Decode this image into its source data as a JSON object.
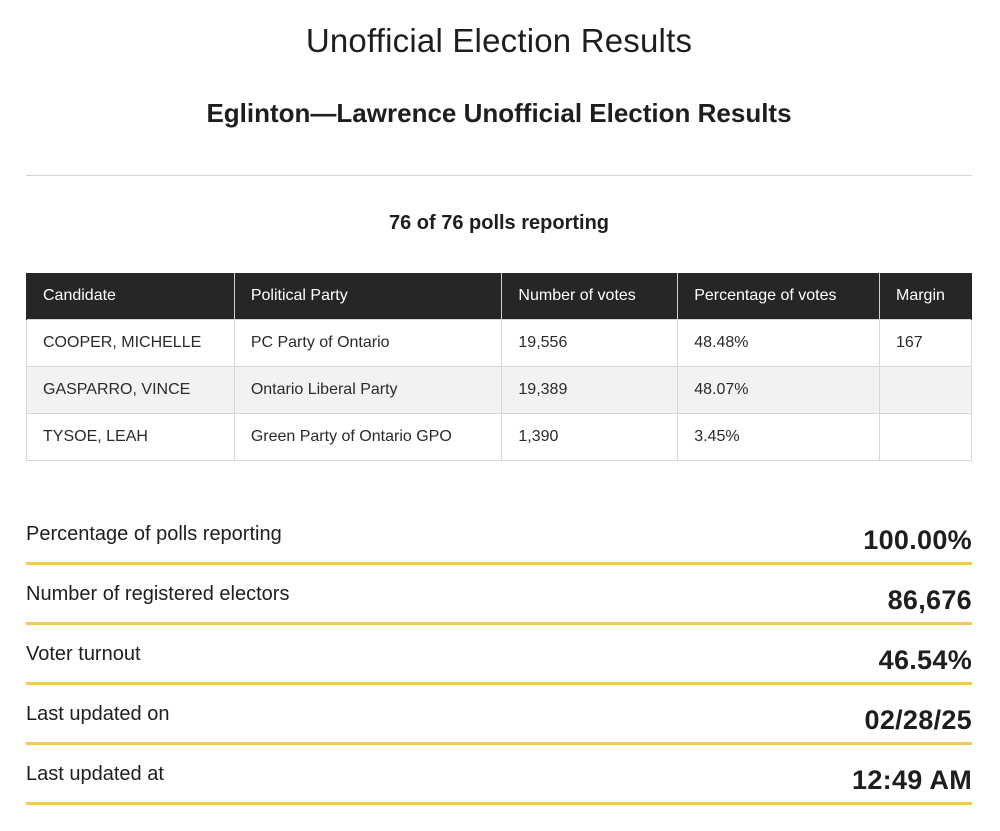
{
  "header": {
    "title": "Unofficial Election Results",
    "subtitle": "Eglinton—Lawrence Unofficial Election Results"
  },
  "polls_reporting_text": "76 of 76 polls reporting",
  "table": {
    "columns": [
      "Candidate",
      "Political Party",
      "Number of votes",
      "Percentage of votes",
      "Margin"
    ],
    "rows": [
      {
        "candidate": "COOPER, MICHELLE",
        "party": "PC Party of Ontario",
        "votes": "19,556",
        "percentage": "48.48%",
        "margin": "167"
      },
      {
        "candidate": "GASPARRO, VINCE",
        "party": "Ontario Liberal Party",
        "votes": "19,389",
        "percentage": "48.07%",
        "margin": ""
      },
      {
        "candidate": "TYSOE, LEAH",
        "party": "Green Party of Ontario GPO",
        "votes": "1,390",
        "percentage": "3.45%",
        "margin": ""
      }
    ]
  },
  "stats": [
    {
      "label": "Percentage of polls reporting",
      "value": "100.00%"
    },
    {
      "label": "Number of registered electors",
      "value": "86,676"
    },
    {
      "label": "Voter turnout",
      "value": "46.54%"
    },
    {
      "label": "Last updated on",
      "value": "02/28/25"
    },
    {
      "label": "Last updated at",
      "value": "12:49 AM"
    }
  ],
  "colors": {
    "table_header_bg": "#262626",
    "accent_underline": "#f5c85a",
    "alt_row_bg": "#f2f2f2"
  }
}
